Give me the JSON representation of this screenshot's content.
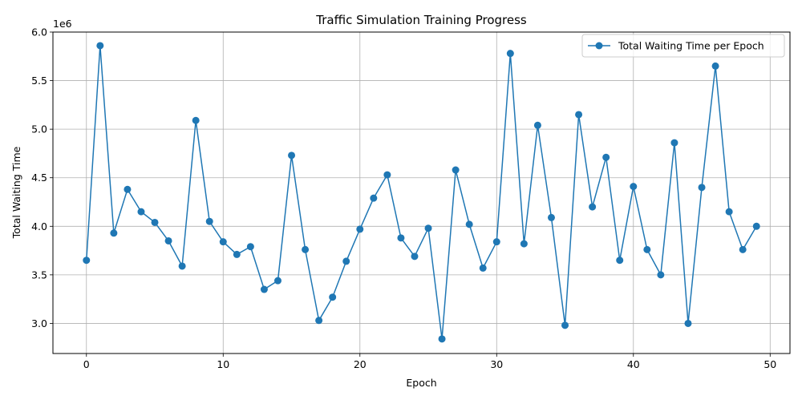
{
  "chart_data": {
    "type": "line",
    "title": "Traffic Simulation Training Progress",
    "xlabel": "Epoch",
    "ylabel": "Total Waiting Time",
    "y_offset_text": "1e6",
    "y_scale_factor": 1000000,
    "xlim": [
      -2.45,
      51.45
    ],
    "ylim": [
      2690000,
      6000000
    ],
    "xticks": [
      0,
      10,
      20,
      30,
      40,
      50
    ],
    "yticks": [
      3000000,
      3500000,
      4000000,
      4500000,
      5000000,
      5500000,
      6000000
    ],
    "xtick_labels": [
      "0",
      "10",
      "20",
      "30",
      "40",
      "50"
    ],
    "ytick_labels": [
      "3.0",
      "3.5",
      "4.0",
      "4.5",
      "5.0",
      "5.5",
      "6.0"
    ],
    "grid": true,
    "legend_position": "top-right",
    "series": [
      {
        "name": "Total Waiting Time per Epoch",
        "color": "#1f77b4",
        "marker": "circle",
        "x": [
          0,
          1,
          2,
          3,
          4,
          5,
          6,
          7,
          8,
          9,
          10,
          11,
          12,
          13,
          14,
          15,
          16,
          17,
          18,
          19,
          20,
          21,
          22,
          23,
          24,
          25,
          26,
          27,
          28,
          29,
          30,
          31,
          32,
          33,
          34,
          35,
          36,
          37,
          38,
          39,
          40,
          41,
          42,
          43,
          44,
          45,
          46,
          47,
          48,
          49
        ],
        "y": [
          3650000,
          5860000,
          3930000,
          4380000,
          4150000,
          4040000,
          3850000,
          3590000,
          5090000,
          4050000,
          3840000,
          3710000,
          3790000,
          3350000,
          3440000,
          4730000,
          3760000,
          3030000,
          3270000,
          3640000,
          3970000,
          4290000,
          4530000,
          3880000,
          3690000,
          3980000,
          2840000,
          4580000,
          4020000,
          3570000,
          3840000,
          5780000,
          3820000,
          5040000,
          4090000,
          2980000,
          5150000,
          4200000,
          4710000,
          3650000,
          4410000,
          3760000,
          3500000,
          4860000,
          3000000,
          4400000,
          5650000,
          4150000,
          3760000,
          4000000
        ]
      }
    ]
  }
}
